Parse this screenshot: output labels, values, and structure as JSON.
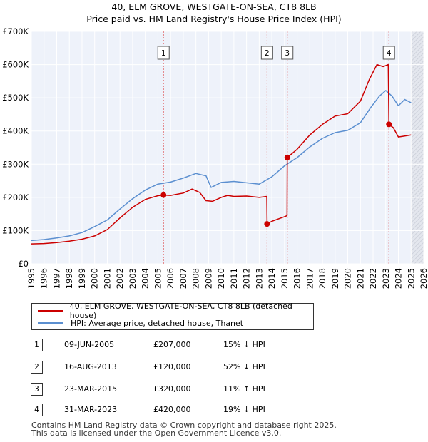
{
  "chart_data": {
    "type": "line",
    "title": "40, ELM GROVE, WESTGATE-ON-SEA, CT8 8LB",
    "subtitle": "Price paid vs. HM Land Registry's House Price Index (HPI)",
    "xlabel": "",
    "ylabel": "",
    "xlim": [
      1995,
      2026
    ],
    "ylim": [
      0,
      700000
    ],
    "y_ticks": [
      {
        "value": 0,
        "label": "£0"
      },
      {
        "value": 100000,
        "label": "£100K"
      },
      {
        "value": 200000,
        "label": "£200K"
      },
      {
        "value": 300000,
        "label": "£300K"
      },
      {
        "value": 400000,
        "label": "£400K"
      },
      {
        "value": 500000,
        "label": "£500K"
      },
      {
        "value": 600000,
        "label": "£600K"
      },
      {
        "value": 700000,
        "label": "£700K"
      }
    ],
    "x_ticks": [
      "1995",
      "1996",
      "1997",
      "1998",
      "1999",
      "2000",
      "2001",
      "2002",
      "2003",
      "2004",
      "2005",
      "2006",
      "2007",
      "2008",
      "2009",
      "2010",
      "2011",
      "2012",
      "2013",
      "2014",
      "2015",
      "2016",
      "2017",
      "2018",
      "2019",
      "2020",
      "2021",
      "2022",
      "2023",
      "2024",
      "2025",
      "2026"
    ],
    "grid": true,
    "legend_position": "below",
    "series": [
      {
        "name": "40, ELM GROVE, WESTGATE-ON-SEA, CT8 8LB (detached house)",
        "color": "#cc0000",
        "points": [
          [
            1995,
            60000
          ],
          [
            1996,
            61000
          ],
          [
            1997,
            64000
          ],
          [
            1998,
            68000
          ],
          [
            1999,
            74000
          ],
          [
            2000,
            84000
          ],
          [
            2001,
            103000
          ],
          [
            2002,
            138000
          ],
          [
            2003,
            170000
          ],
          [
            2004,
            194000
          ],
          [
            2005,
            205000
          ],
          [
            2005.44,
            207000
          ],
          [
            2006,
            206000
          ],
          [
            2007,
            213000
          ],
          [
            2007.7,
            225000
          ],
          [
            2008.3,
            215000
          ],
          [
            2008.8,
            190000
          ],
          [
            2009.3,
            188000
          ],
          [
            2010,
            200000
          ],
          [
            2010.5,
            206000
          ],
          [
            2011,
            203000
          ],
          [
            2012,
            204000
          ],
          [
            2013,
            200000
          ],
          [
            2013.6,
            203000
          ],
          [
            2013.62,
            120000
          ],
          [
            2014,
            128000
          ],
          [
            2015,
            142000
          ],
          [
            2015.2,
            145000
          ],
          [
            2015.22,
            320000
          ],
          [
            2016,
            345000
          ],
          [
            2017,
            388000
          ],
          [
            2018,
            420000
          ],
          [
            2019,
            445000
          ],
          [
            2020,
            452000
          ],
          [
            2021,
            490000
          ],
          [
            2021.7,
            555000
          ],
          [
            2022.3,
            600000
          ],
          [
            2022.8,
            594000
          ],
          [
            2023.2,
            600000
          ],
          [
            2023.25,
            420000
          ],
          [
            2023.6,
            410000
          ],
          [
            2024,
            382000
          ],
          [
            2024.5,
            385000
          ],
          [
            2025,
            388000
          ]
        ]
      },
      {
        "name": "HPI: Average price, detached house, Thanet",
        "color": "#5b8fd0",
        "points": [
          [
            1995,
            70000
          ],
          [
            1996,
            73000
          ],
          [
            1997,
            78000
          ],
          [
            1998,
            84000
          ],
          [
            1999,
            94000
          ],
          [
            2000,
            112000
          ],
          [
            2001,
            132000
          ],
          [
            2002,
            165000
          ],
          [
            2003,
            196000
          ],
          [
            2004,
            222000
          ],
          [
            2005,
            240000
          ],
          [
            2006,
            246000
          ],
          [
            2007,
            258000
          ],
          [
            2008,
            272000
          ],
          [
            2008.8,
            265000
          ],
          [
            2009.2,
            230000
          ],
          [
            2010,
            245000
          ],
          [
            2011,
            248000
          ],
          [
            2012,
            244000
          ],
          [
            2013,
            240000
          ],
          [
            2014,
            262000
          ],
          [
            2015,
            295000
          ],
          [
            2016,
            320000
          ],
          [
            2017,
            352000
          ],
          [
            2018,
            378000
          ],
          [
            2019,
            395000
          ],
          [
            2020,
            402000
          ],
          [
            2021,
            425000
          ],
          [
            2021.8,
            470000
          ],
          [
            2022.5,
            505000
          ],
          [
            2023,
            522000
          ],
          [
            2023.5,
            505000
          ],
          [
            2024,
            476000
          ],
          [
            2024.5,
            495000
          ],
          [
            2025,
            485000
          ]
        ]
      }
    ],
    "sales": [
      {
        "label": "1",
        "x": 2005.44,
        "y": 207000
      },
      {
        "label": "2",
        "x": 2013.62,
        "y": 120000
      },
      {
        "label": "3",
        "x": 2015.22,
        "y": 320000
      },
      {
        "label": "4",
        "x": 2023.25,
        "y": 420000
      }
    ],
    "shade_from": 2025
  },
  "legend": {
    "property": "40, ELM GROVE, WESTGATE-ON-SEA, CT8 8LB (detached house)",
    "hpi": "HPI: Average price, detached house, Thanet"
  },
  "transactions": [
    {
      "num": "1",
      "date": "09-JUN-2005",
      "price": "£207,000",
      "hpi": "15% ↓ HPI"
    },
    {
      "num": "2",
      "date": "16-AUG-2013",
      "price": "£120,000",
      "hpi": "52% ↓ HPI"
    },
    {
      "num": "3",
      "date": "23-MAR-2015",
      "price": "£320,000",
      "hpi": "11% ↑ HPI"
    },
    {
      "num": "4",
      "date": "31-MAR-2023",
      "price": "£420,000",
      "hpi": "19% ↓ HPI"
    }
  ],
  "footer": {
    "line1": "Contains HM Land Registry data © Crown copyright and database right 2025.",
    "line2": "This data is licensed under the Open Government Licence v3.0."
  }
}
